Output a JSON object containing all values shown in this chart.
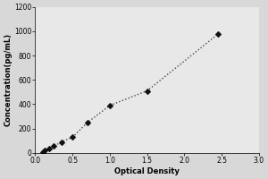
{
  "x_data": [
    0.1,
    0.13,
    0.18,
    0.25,
    0.35,
    0.5,
    0.7,
    1.0,
    1.5,
    2.45
  ],
  "y_data": [
    10,
    20,
    35,
    55,
    90,
    130,
    250,
    390,
    510,
    975
  ],
  "xlabel": "Optical Density",
  "ylabel": "Concentration(pg/mL)",
  "xlim": [
    0,
    3
  ],
  "ylim": [
    0,
    1200
  ],
  "xticks": [
    0,
    0.5,
    1,
    1.5,
    2,
    2.5,
    3
  ],
  "yticks": [
    0,
    200,
    400,
    600,
    800,
    1000,
    1200
  ],
  "line_color": "#444444",
  "marker_color": "#111111",
  "background_color": "#d8d8d8",
  "plot_bg_color": "#e8e8e8",
  "axis_fontsize": 6,
  "tick_fontsize": 5.5,
  "marker_size": 8,
  "line_width": 1.0
}
